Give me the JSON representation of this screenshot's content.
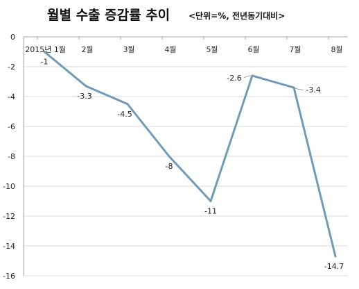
{
  "chart_data": {
    "type": "line",
    "title": "월별 수출 증감률 추이",
    "subtitle": "<단위=%, 전년동기대비>",
    "xlabel": "",
    "ylabel": "",
    "categories": [
      "2015년 1월",
      "2월",
      "3월",
      "4월",
      "5월",
      "6월",
      "7월",
      "8월"
    ],
    "series": [
      {
        "values": [
          -1,
          -3.3,
          -4.5,
          -8,
          -11,
          -2.6,
          -3.4,
          -14.7
        ]
      }
    ],
    "data_labels": [
      "-1",
      "-3.3",
      "-4.5",
      "-8",
      "-11",
      "-2.6",
      "-3.4",
      "-14.7"
    ],
    "ylim": [
      -16,
      0
    ],
    "yticks": [
      "0",
      "-2",
      "-4",
      "-6",
      "-8",
      "-10",
      "-12",
      "-14",
      "-16"
    ],
    "grid": "horizontal",
    "line_color": "#6f9ab8"
  }
}
